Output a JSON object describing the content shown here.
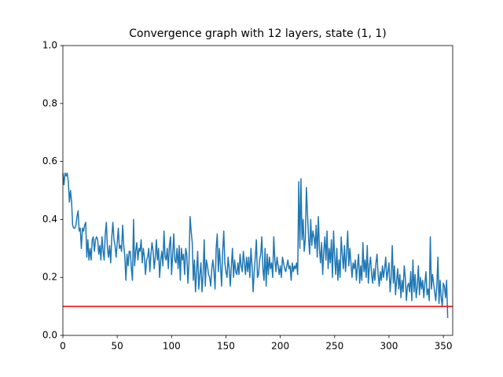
{
  "chart_data": {
    "type": "line",
    "title": "Convergence graph with 12 layers, state (1, 1)",
    "series": [
      {
        "color": "#1f77b4",
        "values": [
          0.56,
          0.52,
          0.56,
          0.55,
          0.56,
          0.53,
          0.46,
          0.5,
          0.46,
          0.38,
          0.37,
          0.37,
          0.38,
          0.41,
          0.43,
          0.36,
          0.37,
          0.3,
          0.37,
          0.36,
          0.38,
          0.39,
          0.27,
          0.33,
          0.26,
          0.3,
          0.26,
          0.33,
          0.34,
          0.29,
          0.33,
          0.34,
          0.33,
          0.28,
          0.31,
          0.26,
          0.34,
          0.29,
          0.26,
          0.35,
          0.39,
          0.3,
          0.27,
          0.31,
          0.25,
          0.34,
          0.39,
          0.33,
          0.31,
          0.27,
          0.32,
          0.37,
          0.3,
          0.31,
          0.29,
          0.38,
          0.31,
          0.27,
          0.19,
          0.28,
          0.24,
          0.29,
          0.29,
          0.23,
          0.19,
          0.4,
          0.24,
          0.29,
          0.32,
          0.26,
          0.3,
          0.29,
          0.33,
          0.25,
          0.3,
          0.27,
          0.21,
          0.26,
          0.27,
          0.3,
          0.22,
          0.28,
          0.32,
          0.29,
          0.23,
          0.27,
          0.33,
          0.26,
          0.3,
          0.2,
          0.26,
          0.29,
          0.24,
          0.36,
          0.27,
          0.26,
          0.3,
          0.23,
          0.31,
          0.34,
          0.21,
          0.28,
          0.35,
          0.26,
          0.25,
          0.3,
          0.23,
          0.31,
          0.19,
          0.3,
          0.26,
          0.28,
          0.21,
          0.3,
          0.28,
          0.18,
          0.25,
          0.41,
          0.36,
          0.32,
          0.19,
          0.26,
          0.15,
          0.22,
          0.29,
          0.16,
          0.21,
          0.25,
          0.15,
          0.21,
          0.33,
          0.17,
          0.26,
          0.24,
          0.21,
          0.2,
          0.17,
          0.23,
          0.26,
          0.22,
          0.16,
          0.3,
          0.35,
          0.22,
          0.3,
          0.24,
          0.17,
          0.29,
          0.36,
          0.25,
          0.22,
          0.2,
          0.27,
          0.23,
          0.17,
          0.24,
          0.3,
          0.2,
          0.26,
          0.22,
          0.21,
          0.25,
          0.21,
          0.28,
          0.24,
          0.22,
          0.29,
          0.25,
          0.21,
          0.27,
          0.22,
          0.27,
          0.2,
          0.3,
          0.24,
          0.15,
          0.22,
          0.27,
          0.33,
          0.2,
          0.21,
          0.26,
          0.28,
          0.34,
          0.23,
          0.19,
          0.3,
          0.17,
          0.28,
          0.21,
          0.27,
          0.23,
          0.25,
          0.2,
          0.34,
          0.26,
          0.22,
          0.27,
          0.24,
          0.21,
          0.24,
          0.2,
          0.27,
          0.25,
          0.23,
          0.22,
          0.24,
          0.26,
          0.23,
          0.24,
          0.19,
          0.25,
          0.22,
          0.24,
          0.23,
          0.25,
          0.21,
          0.53,
          0.3,
          0.54,
          0.33,
          0.4,
          0.29,
          0.33,
          0.51,
          0.42,
          0.34,
          0.28,
          0.4,
          0.31,
          0.36,
          0.34,
          0.3,
          0.38,
          0.27,
          0.41,
          0.3,
          0.25,
          0.32,
          0.21,
          0.29,
          0.34,
          0.26,
          0.36,
          0.23,
          0.3,
          0.25,
          0.33,
          0.2,
          0.36,
          0.27,
          0.21,
          0.3,
          0.19,
          0.26,
          0.2,
          0.34,
          0.28,
          0.23,
          0.31,
          0.22,
          0.28,
          0.36,
          0.24,
          0.3,
          0.25,
          0.2,
          0.25,
          0.23,
          0.26,
          0.19,
          0.24,
          0.28,
          0.18,
          0.24,
          0.19,
          0.32,
          0.22,
          0.26,
          0.2,
          0.31,
          0.18,
          0.24,
          0.27,
          0.21,
          0.18,
          0.23,
          0.19,
          0.25,
          0.28,
          0.21,
          0.17,
          0.22,
          0.19,
          0.24,
          0.2,
          0.23,
          0.27,
          0.19,
          0.22,
          0.25,
          0.15,
          0.2,
          0.31,
          0.18,
          0.24,
          0.14,
          0.19,
          0.23,
          0.16,
          0.21,
          0.13,
          0.19,
          0.15,
          0.24,
          0.2,
          0.12,
          0.17,
          0.18,
          0.15,
          0.22,
          0.12,
          0.26,
          0.15,
          0.21,
          0.13,
          0.17,
          0.24,
          0.14,
          0.2,
          0.16,
          0.19,
          0.13,
          0.18,
          0.22,
          0.14,
          0.16,
          0.12,
          0.34,
          0.16,
          0.21,
          0.18,
          0.15,
          0.12,
          0.17,
          0.27,
          0.11,
          0.19,
          0.13,
          0.1,
          0.18,
          0.17,
          0.13,
          0.19,
          0.06
        ]
      }
    ],
    "hline": {
      "value": 0.1,
      "color": "#ff0000"
    },
    "xlim": [
      0,
      358.6
    ],
    "xticks": [
      0,
      50,
      100,
      150,
      200,
      250,
      300,
      350
    ],
    "ylim": [
      0,
      1
    ],
    "yticks": [
      {
        "value": 0,
        "label": "0.0"
      },
      {
        "value": 0.2,
        "label": "0.2"
      },
      {
        "value": 0.4,
        "label": "0.4"
      },
      {
        "value": 0.6,
        "label": "0.6"
      },
      {
        "value": 0.8,
        "label": "0.8"
      },
      {
        "value": 1,
        "label": "1.0"
      }
    ]
  }
}
